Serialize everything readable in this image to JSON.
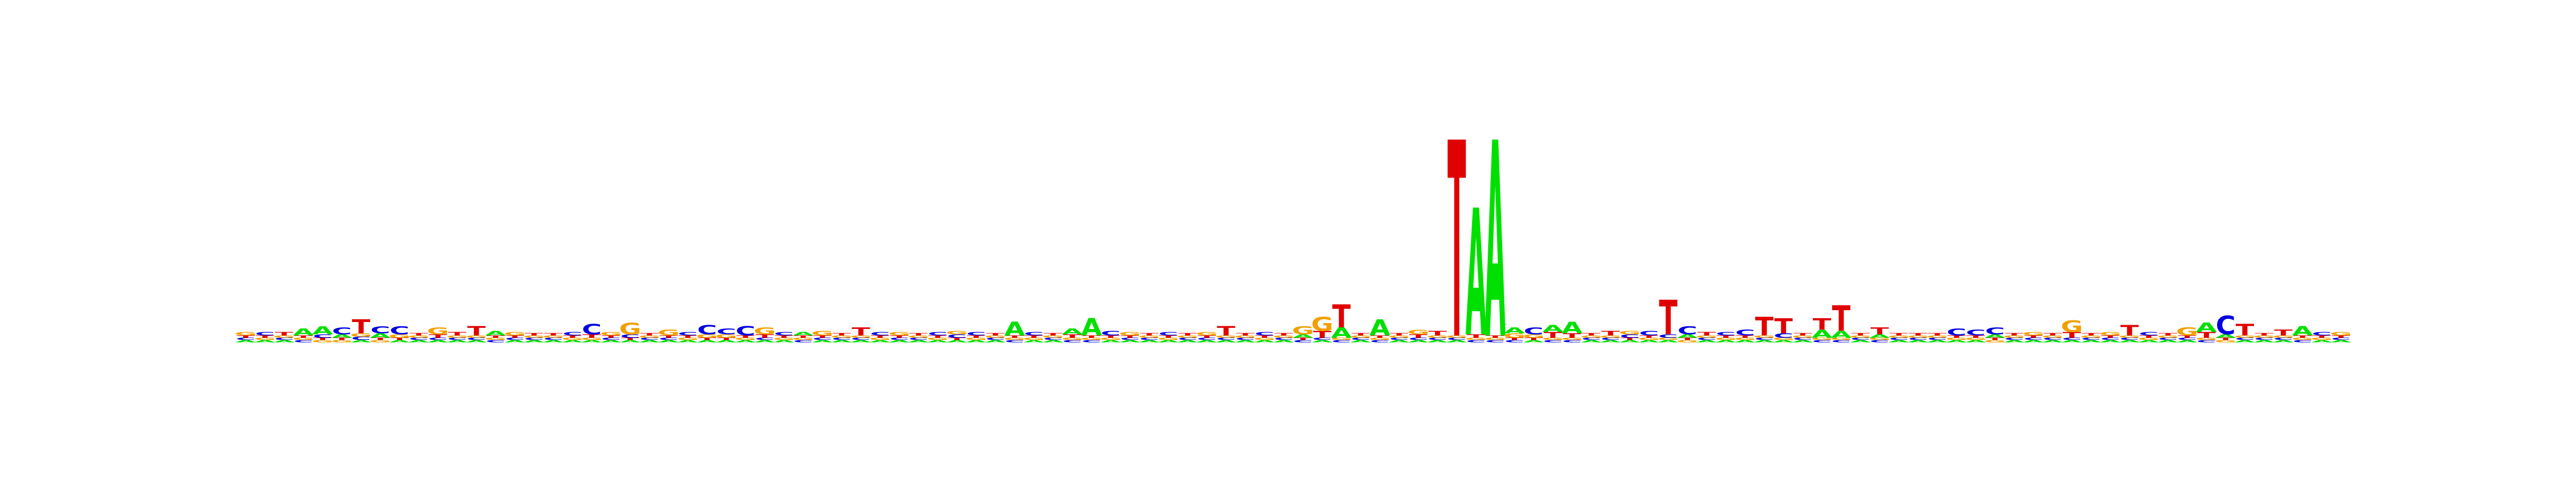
{
  "chart_data": {
    "type": "sequence-logo",
    "alphabet": [
      "A",
      "C",
      "G",
      "T"
    ],
    "colors": {
      "A": "#00e000",
      "C": "#0000e0",
      "G": "#f0a000",
      "T": "#e00000"
    },
    "positions": [
      {
        "A": 0.02,
        "C": 0.02,
        "G": 0.03,
        "T": 0.02
      },
      {
        "A": 0.02,
        "C": 0.03,
        "G": 0.02,
        "T": 0.02
      },
      {
        "A": 0.02,
        "C": 0.02,
        "G": 0.02,
        "T": 0.03
      },
      {
        "A": 0.06,
        "C": 0.02,
        "G": 0.02,
        "T": 0.02
      },
      {
        "A": 0.07,
        "C": 0.03,
        "G": 0.02,
        "T": 0.02
      },
      {
        "A": 0.03,
        "C": 0.06,
        "G": 0.02,
        "T": 0.02
      },
      {
        "A": 0.02,
        "C": 0.03,
        "G": 0.03,
        "T": 0.12
      },
      {
        "A": 0.04,
        "C": 0.06,
        "G": 0.02,
        "T": 0.02
      },
      {
        "A": 0.02,
        "C": 0.07,
        "G": 0.03,
        "T": 0.02
      },
      {
        "A": 0.02,
        "C": 0.02,
        "G": 0.02,
        "T": 0.02
      },
      {
        "A": 0.02,
        "C": 0.02,
        "G": 0.06,
        "T": 0.03
      },
      {
        "A": 0.02,
        "C": 0.02,
        "G": 0.02,
        "T": 0.03
      },
      {
        "A": 0.02,
        "C": 0.02,
        "G": 0.02,
        "T": 0.08
      },
      {
        "A": 0.04,
        "C": 0.02,
        "G": 0.02,
        "T": 0.02
      },
      {
        "A": 0.02,
        "C": 0.02,
        "G": 0.03,
        "T": 0.02
      },
      {
        "A": 0.02,
        "C": 0.02,
        "G": 0.02,
        "T": 0.02
      },
      {
        "A": 0.02,
        "C": 0.02,
        "G": 0.02,
        "T": 0.02
      },
      {
        "A": 0.02,
        "C": 0.03,
        "G": 0.02,
        "T": 0.02
      },
      {
        "A": 0.02,
        "C": 0.09,
        "G": 0.02,
        "T": 0.03
      },
      {
        "A": 0.02,
        "C": 0.02,
        "G": 0.03,
        "T": 0.02
      },
      {
        "A": 0.02,
        "C": 0.03,
        "G": 0.1,
        "T": 0.02
      },
      {
        "A": 0.02,
        "C": 0.02,
        "G": 0.02,
        "T": 0.02
      },
      {
        "A": 0.02,
        "C": 0.02,
        "G": 0.05,
        "T": 0.02
      },
      {
        "A": 0.02,
        "C": 0.03,
        "G": 0.02,
        "T": 0.02
      },
      {
        "A": 0.02,
        "C": 0.08,
        "G": 0.03,
        "T": 0.02
      },
      {
        "A": 0.02,
        "C": 0.05,
        "G": 0.03,
        "T": 0.02
      },
      {
        "A": 0.02,
        "C": 0.08,
        "G": 0.02,
        "T": 0.02
      },
      {
        "A": 0.02,
        "C": 0.02,
        "G": 0.06,
        "T": 0.03
      },
      {
        "A": 0.02,
        "C": 0.03,
        "G": 0.02,
        "T": 0.02
      },
      {
        "A": 0.03,
        "C": 0.02,
        "G": 0.02,
        "T": 0.02
      },
      {
        "A": 0.02,
        "C": 0.02,
        "G": 0.04,
        "T": 0.02
      },
      {
        "A": 0.02,
        "C": 0.02,
        "G": 0.02,
        "T": 0.02
      },
      {
        "A": 0.02,
        "C": 0.02,
        "G": 0.02,
        "T": 0.07
      },
      {
        "A": 0.02,
        "C": 0.03,
        "G": 0.02,
        "T": 0.02
      },
      {
        "A": 0.02,
        "C": 0.02,
        "G": 0.03,
        "T": 0.02
      },
      {
        "A": 0.02,
        "C": 0.02,
        "G": 0.02,
        "T": 0.02
      },
      {
        "A": 0.02,
        "C": 0.03,
        "G": 0.02,
        "T": 0.02
      },
      {
        "A": 0.02,
        "C": 0.03,
        "G": 0.03,
        "T": 0.02
      },
      {
        "A": 0.02,
        "C": 0.03,
        "G": 0.02,
        "T": 0.02
      },
      {
        "A": 0.02,
        "C": 0.02,
        "G": 0.02,
        "T": 0.02
      },
      {
        "A": 0.12,
        "C": 0.02,
        "G": 0.02,
        "T": 0.02
      },
      {
        "A": 0.02,
        "C": 0.03,
        "G": 0.02,
        "T": 0.02
      },
      {
        "A": 0.02,
        "C": 0.02,
        "G": 0.02,
        "T": 0.02
      },
      {
        "A": 0.05,
        "C": 0.02,
        "G": 0.02,
        "T": 0.03
      },
      {
        "A": 0.15,
        "C": 0.02,
        "G": 0.02,
        "T": 0.02
      },
      {
        "A": 0.02,
        "C": 0.04,
        "G": 0.02,
        "T": 0.02
      },
      {
        "A": 0.02,
        "C": 0.02,
        "G": 0.03,
        "T": 0.02
      },
      {
        "A": 0.02,
        "C": 0.02,
        "G": 0.02,
        "T": 0.02
      },
      {
        "A": 0.02,
        "C": 0.03,
        "G": 0.02,
        "T": 0.02
      },
      {
        "A": 0.02,
        "C": 0.02,
        "G": 0.02,
        "T": 0.02
      },
      {
        "A": 0.02,
        "C": 0.02,
        "G": 0.03,
        "T": 0.02
      },
      {
        "A": 0.02,
        "C": 0.02,
        "G": 0.02,
        "T": 0.08
      },
      {
        "A": 0.02,
        "C": 0.02,
        "G": 0.02,
        "T": 0.02
      },
      {
        "A": 0.02,
        "C": 0.03,
        "G": 0.02,
        "T": 0.02
      },
      {
        "A": 0.02,
        "C": 0.02,
        "G": 0.02,
        "T": 0.02
      },
      {
        "A": 0.03,
        "C": 0.02,
        "G": 0.07,
        "T": 0.02
      },
      {
        "A": 0.02,
        "C": 0.02,
        "G": 0.12,
        "T": 0.06
      },
      {
        "A": 0.09,
        "C": 0.02,
        "G": 0.02,
        "T": 0.2
      },
      {
        "A": 0.02,
        "C": 0.02,
        "G": 0.02,
        "T": 0.02
      },
      {
        "A": 0.14,
        "C": 0.02,
        "G": 0.02,
        "T": 0.02
      },
      {
        "A": 0.02,
        "C": 0.02,
        "G": 0.02,
        "T": 0.02
      },
      {
        "A": 0.02,
        "C": 0.02,
        "G": 0.04,
        "T": 0.03
      },
      {
        "A": 0.02,
        "C": 0.02,
        "G": 0.02,
        "T": 0.04
      },
      {
        "A": 0.02,
        "C": 0.02,
        "G": 0.02,
        "T": 1.7
      },
      {
        "A": 1.1,
        "C": 0.02,
        "G": 0.02,
        "T": 0.03
      },
      {
        "A": 1.7,
        "C": 0.02,
        "G": 0.02,
        "T": 0.02
      },
      {
        "A": 0.05,
        "C": 0.02,
        "G": 0.04,
        "T": 0.02
      },
      {
        "A": 0.02,
        "C": 0.06,
        "G": 0.03,
        "T": 0.02
      },
      {
        "A": 0.06,
        "C": 0.02,
        "G": 0.02,
        "T": 0.05
      },
      {
        "A": 0.1,
        "C": 0.02,
        "G": 0.02,
        "T": 0.04
      },
      {
        "A": 0.02,
        "C": 0.02,
        "G": 0.02,
        "T": 0.02
      },
      {
        "A": 0.02,
        "C": 0.02,
        "G": 0.02,
        "T": 0.04
      },
      {
        "A": 0.02,
        "C": 0.03,
        "G": 0.03,
        "T": 0.02
      },
      {
        "A": 0.02,
        "C": 0.04,
        "G": 0.02,
        "T": 0.02
      },
      {
        "A": 0.02,
        "C": 0.03,
        "G": 0.02,
        "T": 0.3
      },
      {
        "A": 0.03,
        "C": 0.07,
        "G": 0.02,
        "T": 0.02
      },
      {
        "A": 0.02,
        "C": 0.02,
        "G": 0.02,
        "T": 0.03
      },
      {
        "A": 0.02,
        "C": 0.03,
        "G": 0.02,
        "T": 0.02
      },
      {
        "A": 0.02,
        "C": 0.05,
        "G": 0.02,
        "T": 0.02
      },
      {
        "A": 0.02,
        "C": 0.02,
        "G": 0.02,
        "T": 0.16
      },
      {
        "A": 0.02,
        "C": 0.04,
        "G": 0.02,
        "T": 0.13
      },
      {
        "A": 0.02,
        "C": 0.02,
        "G": 0.02,
        "T": 0.02
      },
      {
        "A": 0.07,
        "C": 0.02,
        "G": 0.02,
        "T": 0.1
      },
      {
        "A": 0.06,
        "C": 0.02,
        "G": 0.02,
        "T": 0.22
      },
      {
        "A": 0.02,
        "C": 0.02,
        "G": 0.02,
        "T": 0.02
      },
      {
        "A": 0.03,
        "C": 0.02,
        "G": 0.02,
        "T": 0.06
      },
      {
        "A": 0.02,
        "C": 0.02,
        "G": 0.02,
        "T": 0.02
      },
      {
        "A": 0.02,
        "C": 0.02,
        "G": 0.02,
        "T": 0.02
      },
      {
        "A": 0.02,
        "C": 0.02,
        "G": 0.02,
        "T": 0.02
      },
      {
        "A": 0.02,
        "C": 0.06,
        "G": 0.02,
        "T": 0.02
      },
      {
        "A": 0.02,
        "C": 0.05,
        "G": 0.02,
        "T": 0.02
      },
      {
        "A": 0.03,
        "C": 0.06,
        "G": 0.02,
        "T": 0.02
      },
      {
        "A": 0.02,
        "C": 0.02,
        "G": 0.02,
        "T": 0.02
      },
      {
        "A": 0.02,
        "C": 0.02,
        "G": 0.03,
        "T": 0.02
      },
      {
        "A": 0.02,
        "C": 0.02,
        "G": 0.02,
        "T": 0.02
      },
      {
        "A": 0.02,
        "C": 0.02,
        "G": 0.1,
        "T": 0.05
      },
      {
        "A": 0.02,
        "C": 0.02,
        "G": 0.02,
        "T": 0.02
      },
      {
        "A": 0.02,
        "C": 0.02,
        "G": 0.03,
        "T": 0.02
      },
      {
        "A": 0.02,
        "C": 0.02,
        "G": 0.02,
        "T": 0.09
      },
      {
        "A": 0.02,
        "C": 0.03,
        "G": 0.02,
        "T": 0.02
      },
      {
        "A": 0.02,
        "C": 0.02,
        "G": 0.02,
        "T": 0.02
      },
      {
        "A": 0.02,
        "C": 0.02,
        "G": 0.07,
        "T": 0.02
      },
      {
        "A": 0.08,
        "C": 0.02,
        "G": 0.02,
        "T": 0.05
      },
      {
        "A": 0.03,
        "C": 0.16,
        "G": 0.02,
        "T": 0.02
      },
      {
        "A": 0.02,
        "C": 0.02,
        "G": 0.02,
        "T": 0.1
      },
      {
        "A": 0.02,
        "C": 0.02,
        "G": 0.02,
        "T": 0.02
      },
      {
        "A": 0.02,
        "C": 0.02,
        "G": 0.02,
        "T": 0.05
      },
      {
        "A": 0.08,
        "C": 0.02,
        "G": 0.02,
        "T": 0.02
      },
      {
        "A": 0.02,
        "C": 0.03,
        "G": 0.02,
        "T": 0.02
      },
      {
        "A": 0.02,
        "C": 0.02,
        "G": 0.03,
        "T": 0.02
      }
    ]
  }
}
